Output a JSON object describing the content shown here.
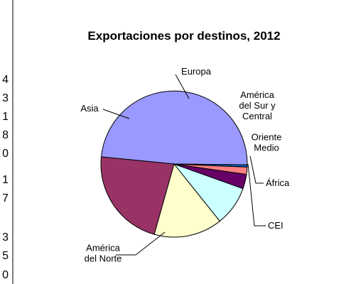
{
  "chart_data": {
    "type": "pie",
    "title": "Exportaciones por destinos, 2012",
    "slices": [
      {
        "label": [
          "América",
          "del Norte"
        ],
        "value": 48.6,
        "color": "#9999ff"
      },
      {
        "label": [
          "Asia"
        ],
        "value": 22.2,
        "color": "#993366"
      },
      {
        "label": [
          "Europa"
        ],
        "value": 15.1,
        "color": "#ffffcc"
      },
      {
        "label": [
          "América",
          "del Sur y",
          "Central"
        ],
        "value": 8.8,
        "color": "#ccffff"
      },
      {
        "label": [
          "Oriente",
          "Medio"
        ],
        "value": 3.2,
        "color": "#660066"
      },
      {
        "label": [
          "África"
        ],
        "value": 1.6,
        "color": "#ff8080"
      },
      {
        "label": [
          "CEI"
        ],
        "value": 0.5,
        "color": "#0066cc"
      }
    ],
    "legend": false
  },
  "left_fragments": [
    "4",
    "3",
    "1",
    "8",
    "0",
    "1",
    "7",
    "3",
    "5",
    "0"
  ]
}
